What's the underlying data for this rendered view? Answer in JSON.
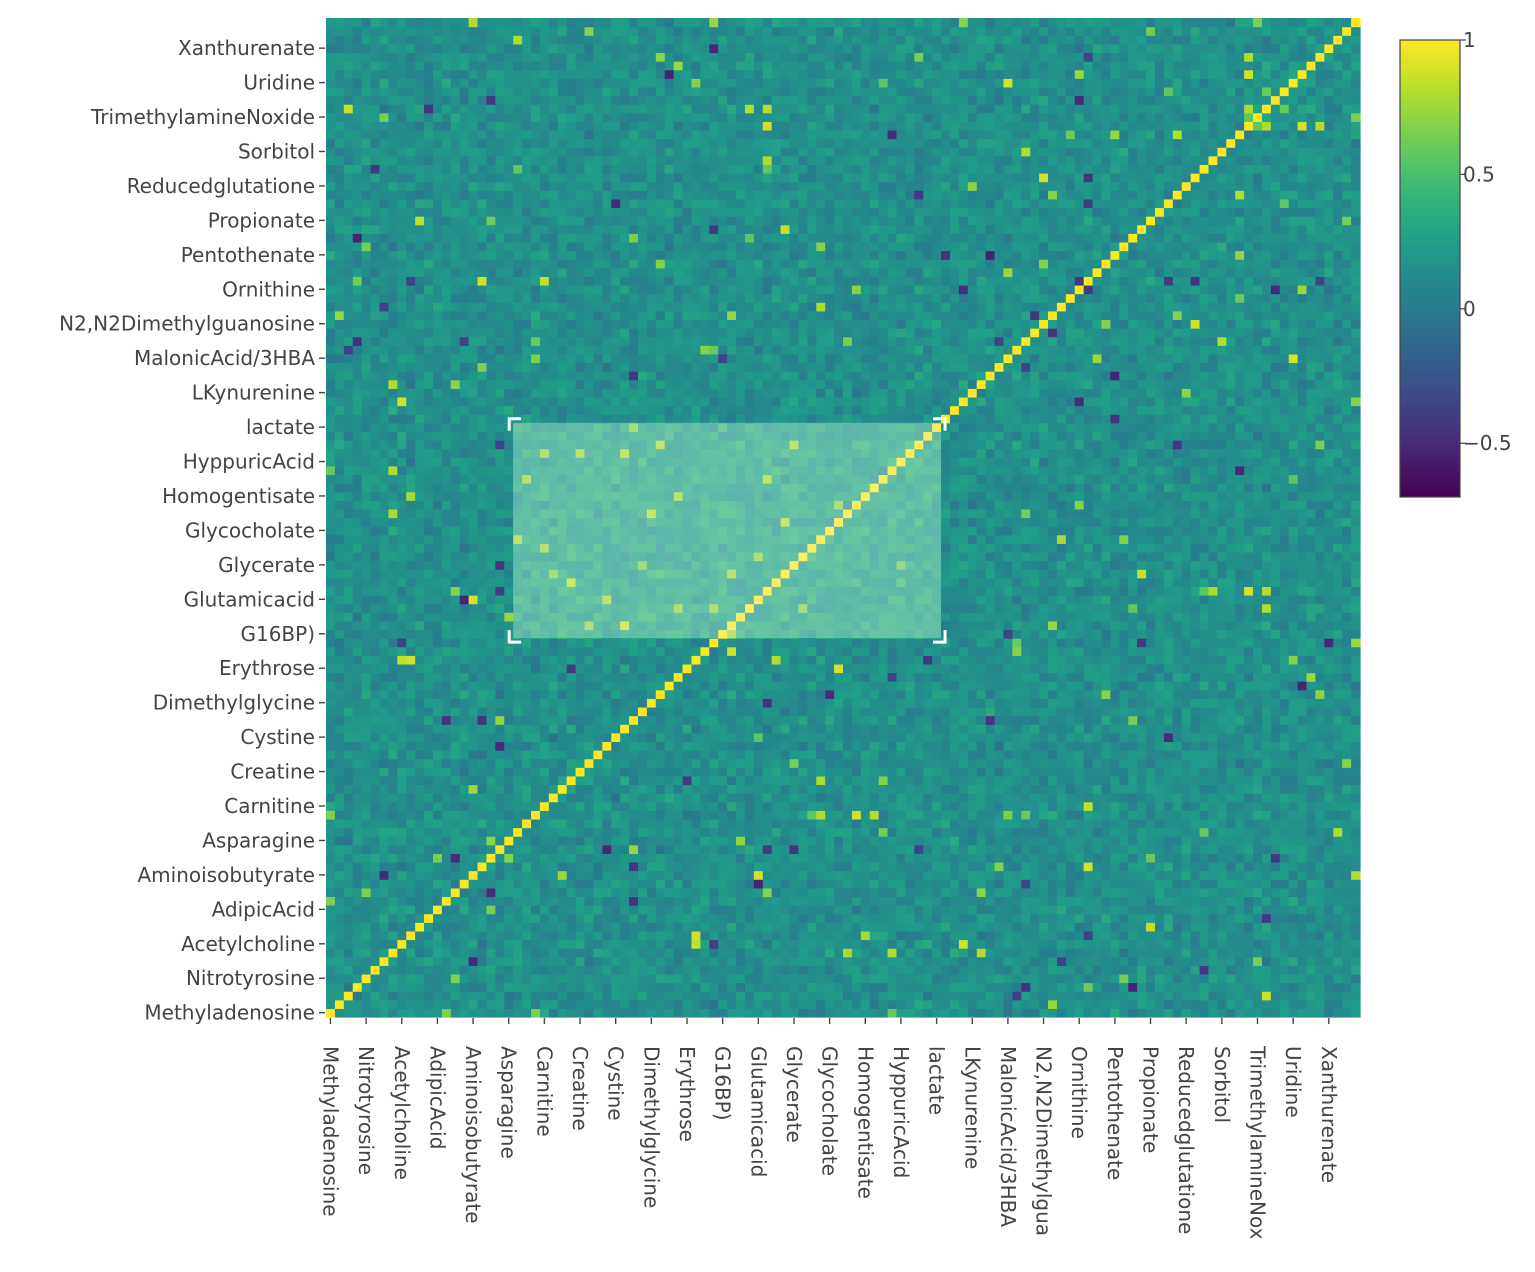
{
  "chart_data": {
    "type": "heatmap",
    "title": "",
    "xlabel": "",
    "ylabel": "",
    "colorscale": "viridis",
    "zrange": [
      -0.7,
      1
    ],
    "tick_labels_x": [
      "Methyladenosine",
      "Nitrotyrosine",
      "Acetylcholine",
      "AdipicAcid",
      "Aminoisobutyrate",
      "Asparagine",
      "Carnitine",
      "Creatine",
      "Cystine",
      "Dimethylglycine",
      "Erythrose",
      "G16BP)",
      "Glutamicacid",
      "Glycerate",
      "Glycocholate",
      "Homogentisate",
      "HyppuricAcid",
      "lactate",
      "LKynurenine",
      "MalonicAcid/3HBA",
      "N2,N2Dimethylgua",
      "Ornithine",
      "Pentothenate",
      "Propionate",
      "Reducedglutatione",
      "Sorbitol",
      "TrimethylamineNox",
      "Uridine",
      "Xanthurenate"
    ],
    "tick_labels_y": [
      "Methyladenosine",
      "Nitrotyrosine",
      "Acetylcholine",
      "AdipicAcid",
      "Aminoisobutyrate",
      "Asparagine",
      "Carnitine",
      "Creatine",
      "Cystine",
      "Dimethylglycine",
      "Erythrose",
      "G16BP)",
      "Glutamicacid",
      "Glycerate",
      "Glycocholate",
      "Homogentisate",
      "HyppuricAcid",
      "lactate",
      "LKynurenine",
      "MalonicAcid/3HBA",
      "N2,N2Dimethylguanosine",
      "Ornithine",
      "Pentothenate",
      "Propionate",
      "Reducedglutatione",
      "Sorbitol",
      "TrimethylamineNoxide",
      "Uridine",
      "Xanthurenate"
    ],
    "n_variables": 116,
    "tick_every": 4,
    "diagonal_value": 1,
    "typical_offdiagonal_value": 0.15,
    "highlighted_block": {
      "row_start_label": "G16BP)",
      "row_end_label": "lactate",
      "col_start_label": "Asparagine",
      "col_end_label": "lactate",
      "typical_value": 0.3
    },
    "colorbar": {
      "ticks": [
        1,
        0.5,
        0,
        -0.5
      ],
      "tick_labels": [
        "1",
        "0.5",
        "0",
        "−0.5"
      ]
    },
    "legend": "right"
  }
}
